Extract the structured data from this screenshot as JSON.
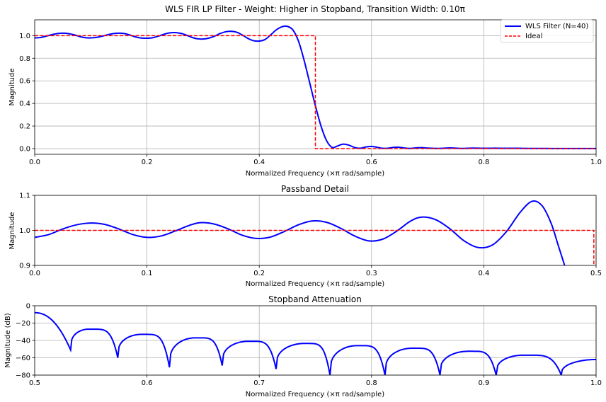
{
  "chart_data": [
    {
      "id": "main",
      "type": "line",
      "title": "WLS FIR LP Filter - Weight: Higher in Stopband, Transition Width: 0.10π",
      "xlabel": "Normalized Frequency (×π rad/sample)",
      "ylabel": "Magnitude",
      "xlim": [
        0,
        1
      ],
      "ylim": [
        -0.05,
        1.14
      ],
      "xticks": [
        0,
        0.2,
        0.4,
        0.6,
        0.8,
        1.0
      ],
      "xtick_labels": [
        "0.0",
        "0.2",
        "0.4",
        "0.6",
        "0.8",
        "1.0"
      ],
      "yticks": [
        0,
        0.2,
        0.4,
        0.6,
        0.8,
        1.0
      ],
      "ytick_labels": [
        "0.0",
        "0.2",
        "0.4",
        "0.6",
        "0.8",
        "1.0"
      ],
      "grid": true,
      "legend": {
        "placement": "top-right",
        "entries": [
          {
            "label": "WLS Filter (N=40)",
            "color": "#0000ff",
            "style": "solid"
          },
          {
            "label": "Ideal",
            "color": "#ff0000",
            "style": "dashed"
          }
        ]
      },
      "series": [
        {
          "name": "WLS Filter (N=40)",
          "color": "#0000ff",
          "style": "solid",
          "x": [
            0,
            0.01,
            0.02,
            0.03,
            0.04,
            0.05,
            0.06,
            0.07,
            0.08,
            0.09,
            0.1,
            0.11,
            0.12,
            0.13,
            0.14,
            0.15,
            0.16,
            0.17,
            0.18,
            0.19,
            0.2,
            0.21,
            0.22,
            0.23,
            0.24,
            0.25,
            0.26,
            0.27,
            0.28,
            0.29,
            0.3,
            0.31,
            0.32,
            0.33,
            0.34,
            0.35,
            0.36,
            0.37,
            0.38,
            0.39,
            0.4,
            0.41,
            0.42,
            0.43,
            0.44,
            0.45,
            0.46,
            0.47,
            0.48,
            0.49,
            0.5,
            0.51,
            0.52,
            0.53,
            0.54,
            0.55,
            0.56,
            0.57,
            0.58,
            0.59,
            0.6,
            0.61,
            0.62,
            0.63,
            0.64,
            0.65,
            0.66,
            0.67,
            0.68,
            0.69,
            0.7,
            0.72,
            0.74,
            0.76,
            0.78,
            0.8,
            0.82,
            0.84,
            0.86,
            0.88,
            0.9,
            0.92,
            0.94,
            0.96,
            0.98,
            1.0
          ],
          "y": [
            0.98,
            0.983,
            0.995,
            1.008,
            1.018,
            1.022,
            1.018,
            1.008,
            0.992,
            0.982,
            0.98,
            0.984,
            0.995,
            1.008,
            1.018,
            1.022,
            1.018,
            1.005,
            0.988,
            0.979,
            0.977,
            0.981,
            0.995,
            1.012,
            1.024,
            1.027,
            1.02,
            1.005,
            0.985,
            0.972,
            0.97,
            0.978,
            0.995,
            1.018,
            1.034,
            1.038,
            1.03,
            1.005,
            0.975,
            0.955,
            0.952,
            0.965,
            1.005,
            1.05,
            1.078,
            1.082,
            1.05,
            0.95,
            0.78,
            0.58,
            0.38,
            0.2,
            0.07,
            0.01,
            0.025,
            0.04,
            0.03,
            0.01,
            0.003,
            0.015,
            0.02,
            0.012,
            0.003,
            0.004,
            0.012,
            0.012,
            0.005,
            0.002,
            0.007,
            0.009,
            0.005,
            0.002,
            0.006,
            0.002,
            0.005,
            0.003,
            0.004,
            0.003,
            0.003,
            0.002,
            0.002,
            0.001,
            0.001,
            0.001,
            0.001,
            0.001
          ]
        },
        {
          "name": "Ideal",
          "color": "#ff0000",
          "style": "dashed",
          "x": [
            0,
            0.5,
            0.5,
            1.0
          ],
          "y": [
            1,
            1,
            0,
            0
          ]
        }
      ]
    },
    {
      "id": "passband",
      "type": "line",
      "title": "Passband Detail",
      "xlabel": "Normalized Frequency (×π rad/sample)",
      "ylabel": "Magnitude",
      "xlim": [
        0,
        0.5
      ],
      "ylim": [
        0.9,
        1.1
      ],
      "xticks": [
        0,
        0.1,
        0.2,
        0.3,
        0.4,
        0.5
      ],
      "xtick_labels": [
        "0.0",
        "0.1",
        "0.2",
        "0.3",
        "0.4",
        "0.5"
      ],
      "yticks": [
        0.9,
        1.0,
        1.1
      ],
      "ytick_labels": [
        "0.9",
        "1.0",
        "1.1"
      ],
      "grid": true,
      "series": [
        {
          "color": "#0000ff",
          "style": "solid",
          "x": [
            0,
            0.0125,
            0.025,
            0.0375,
            0.05,
            0.0625,
            0.075,
            0.0875,
            0.1,
            0.1125,
            0.125,
            0.1375,
            0.1475,
            0.16,
            0.1725,
            0.185,
            0.1975,
            0.21,
            0.2225,
            0.235,
            0.2475,
            0.26,
            0.2725,
            0.285,
            0.2975,
            0.31,
            0.3225,
            0.335,
            0.345,
            0.3575,
            0.37,
            0.3825,
            0.395,
            0.4075,
            0.42,
            0.4325,
            0.443,
            0.452,
            0.46,
            0.466,
            0.472
          ],
          "y": [
            0.98,
            0.988,
            1.004,
            1.016,
            1.021,
            1.017,
            1.004,
            0.988,
            0.98,
            0.984,
            0.998,
            1.014,
            1.022,
            1.018,
            1.004,
            0.986,
            0.977,
            0.981,
            0.997,
            1.016,
            1.027,
            1.023,
            1.006,
            0.984,
            0.97,
            0.975,
            0.998,
            1.027,
            1.038,
            1.03,
            1.004,
            0.97,
            0.951,
            0.958,
            0.996,
            1.052,
            1.083,
            1.07,
            1.02,
            0.96,
            0.9
          ]
        },
        {
          "color": "#ff0000",
          "style": "dashed",
          "x": [
            0,
            0.498,
            0.498
          ],
          "y": [
            1,
            1,
            0.9
          ]
        }
      ]
    },
    {
      "id": "stopband",
      "type": "line",
      "title": "Stopband Attenuation",
      "xlabel": "Normalized Frequency (×π rad/sample)",
      "ylabel": "Magnitude (dB)",
      "xlim": [
        0.5,
        1.0
      ],
      "ylim": [
        -80,
        0
      ],
      "xticks": [
        0.5,
        0.6,
        0.7,
        0.8,
        0.9,
        1.0
      ],
      "xtick_labels": [
        "0.5",
        "0.6",
        "0.7",
        "0.8",
        "0.9",
        "1.0"
      ],
      "yticks": [
        -80,
        -60,
        -40,
        -20,
        0
      ],
      "ytick_labels": [
        "−80",
        "−60",
        "−40",
        "−20",
        "0"
      ],
      "grid": true,
      "lobes": [
        {
          "start": 0.5,
          "start_val": -8,
          "peak_x": 0.5,
          "peak_val": -8,
          "null": 0.532,
          "null_val": -51
        },
        {
          "start": 0.532,
          "start_val": -51,
          "peak_x": 0.548,
          "peak_val": -27,
          "null": 0.574,
          "null_val": -60
        },
        {
          "start": 0.574,
          "start_val": -60,
          "peak_x": 0.595,
          "peak_val": -33,
          "null": 0.62,
          "null_val": -71
        },
        {
          "start": 0.62,
          "start_val": -71,
          "peak_x": 0.643,
          "peak_val": -37,
          "null": 0.667,
          "null_val": -69
        },
        {
          "start": 0.667,
          "start_val": -69,
          "peak_x": 0.69,
          "peak_val": -41,
          "null": 0.715,
          "null_val": -73
        },
        {
          "start": 0.715,
          "start_val": -73,
          "peak_x": 0.74,
          "peak_val": -43.5,
          "null": 0.763,
          "null_val": -80
        },
        {
          "start": 0.763,
          "start_val": -80,
          "peak_x": 0.787,
          "peak_val": -46,
          "null": 0.812,
          "null_val": -80
        },
        {
          "start": 0.812,
          "start_val": -80,
          "peak_x": 0.836,
          "peak_val": -49,
          "null": 0.861,
          "null_val": -80
        },
        {
          "start": 0.861,
          "start_val": -80,
          "peak_x": 0.886,
          "peak_val": -52.5,
          "null": 0.911,
          "null_val": -80
        },
        {
          "start": 0.911,
          "start_val": -80,
          "peak_x": 0.935,
          "peak_val": -57,
          "null": 0.969,
          "null_val": -80
        },
        {
          "start": 0.969,
          "start_val": -80,
          "peak_x": 1.0,
          "peak_val": -62,
          "null": 1.0,
          "null_val": -62
        }
      ],
      "series": [
        {
          "color": "#0000ff",
          "style": "solid"
        }
      ]
    }
  ]
}
